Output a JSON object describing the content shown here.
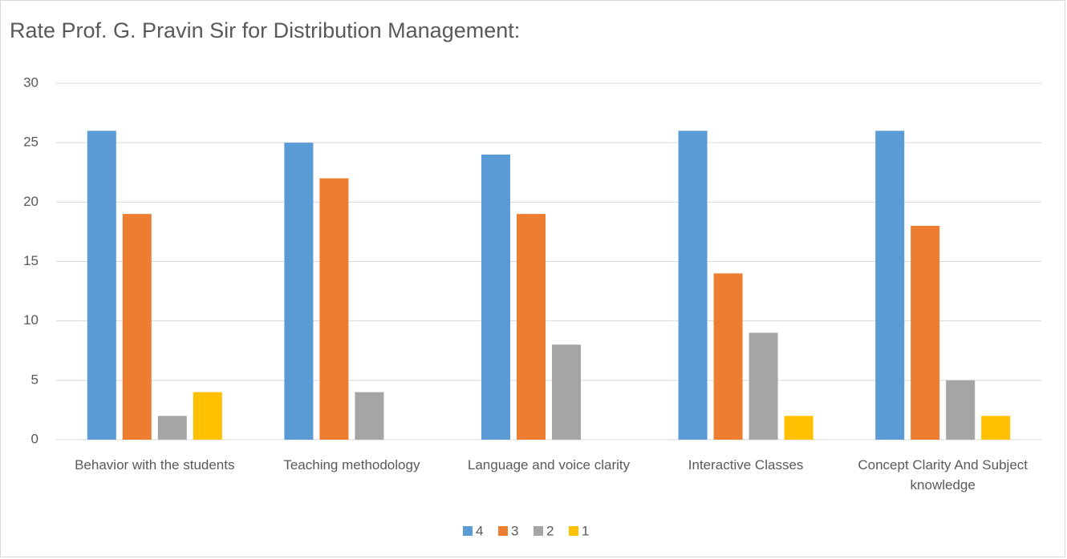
{
  "chart_data": {
    "type": "bar",
    "title": "Rate Prof. G. Pravin Sir for Distribution Management:",
    "categories": [
      "Behavior with the students",
      "Teaching methodology",
      "Language and voice clarity",
      "Interactive Classes",
      "Concept Clarity And Subject knowledge"
    ],
    "series": [
      {
        "name": "4",
        "color": "#5b9bd5",
        "values": [
          26,
          25,
          24,
          26,
          26
        ]
      },
      {
        "name": "3",
        "color": "#ed7d31",
        "values": [
          19,
          22,
          19,
          14,
          18
        ]
      },
      {
        "name": "2",
        "color": "#a5a5a5",
        "values": [
          2,
          4,
          8,
          9,
          5
        ]
      },
      {
        "name": "1",
        "color": "#ffc000",
        "values": [
          4,
          0,
          0,
          2,
          2
        ]
      }
    ],
    "ylim": [
      0,
      30
    ],
    "yticks": [
      0,
      5,
      10,
      15,
      20,
      25,
      30
    ],
    "grid": true,
    "legend": "bottom"
  }
}
